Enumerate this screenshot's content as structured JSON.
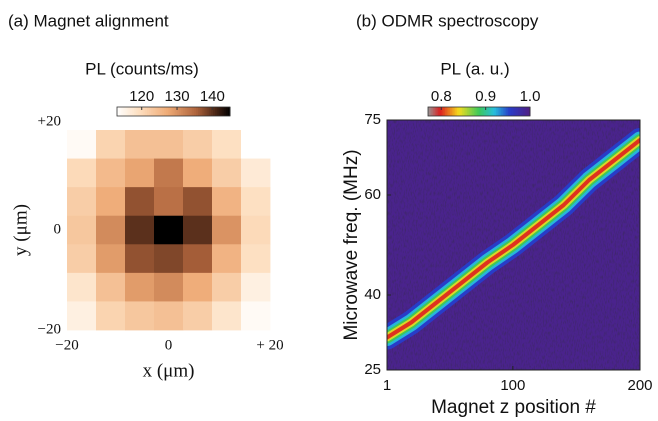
{
  "chart_data": [
    {
      "type": "heatmap",
      "title": "(a) Magnet alignment",
      "colorbar_label": "PL (counts/ms)",
      "xlabel": "x (μm)",
      "ylabel": "y (μm)",
      "xlim": [
        -20,
        20
      ],
      "ylim": [
        -20,
        20
      ],
      "xticks": [
        {
          "value": -20,
          "label": "−20"
        },
        0,
        {
          "value": 20,
          "label": "+ 20"
        }
      ],
      "yticks": [
        {
          "value": -20,
          "label": "−20"
        },
        0,
        {
          "value": 20,
          "label": "+20"
        }
      ],
      "clim": [
        113,
        145
      ],
      "cticks": [
        120,
        130,
        140
      ],
      "values": [
        [
          114,
          121,
          124,
          124,
          122,
          119,
          113
        ],
        [
          120,
          125,
          128,
          133,
          127,
          122,
          117
        ],
        [
          122,
          127,
          137,
          134,
          137,
          126,
          119
        ],
        [
          123,
          131,
          140,
          145,
          140,
          130,
          120
        ],
        [
          122,
          129,
          137,
          138,
          136,
          126,
          119
        ],
        [
          118,
          124,
          129,
          131,
          127,
          122,
          116
        ],
        [
          116,
          121,
          123,
          124,
          122,
          118,
          114
        ]
      ]
    },
    {
      "type": "resonance",
      "title": "(b) ODMR spectroscopy",
      "colorbar_label": "PL (a. u.)",
      "xlabel": "Magnet z position #",
      "ylabel": "Microwave freq. (MHz)",
      "xlim": [
        1,
        200
      ],
      "ylim": [
        25,
        75
      ],
      "xticks": [
        1,
        100,
        200
      ],
      "yticks": [
        25,
        40,
        60,
        75
      ],
      "clim": [
        0.77,
        1.0
      ],
      "cticks": [
        0.8,
        0.9,
        {
          "value": 1.0,
          "label": "1.0"
        }
      ],
      "x": [
        1,
        20,
        40,
        60,
        80,
        100,
        120,
        140,
        160,
        180,
        200
      ],
      "values": [
        31.5,
        34.5,
        38.5,
        42.5,
        46.5,
        50,
        54,
        58,
        63,
        67,
        71
      ]
    }
  ]
}
